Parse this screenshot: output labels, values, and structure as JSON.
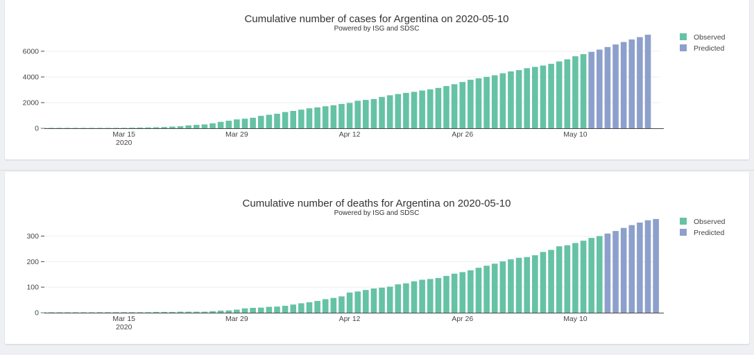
{
  "colors": {
    "observed": "#66c2a5",
    "predicted": "#8da0cb",
    "background": "#eef0f3"
  },
  "chart_data": [
    {
      "type": "bar",
      "title": "Cumulative number of cases for Argentina on 2020-05-10",
      "subtitle": "Powered by ISG and SDSC",
      "xlabel": "",
      "ylabel": "",
      "ylim": [
        0,
        7400
      ],
      "yticks": [
        0,
        2000,
        4000,
        6000
      ],
      "ytick_labels": [
        "0",
        "2000",
        "4000",
        "6000"
      ],
      "xticks": [
        {
          "day": 10,
          "label": "Mar 15",
          "sub": "2020"
        },
        {
          "day": 24,
          "label": "Mar 29",
          "sub": ""
        },
        {
          "day": 38,
          "label": "Apr 12",
          "sub": ""
        },
        {
          "day": 52,
          "label": "Apr 26",
          "sub": ""
        },
        {
          "day": 66,
          "label": "May 10",
          "sub": ""
        }
      ],
      "legend": {
        "position": "top-right",
        "entries": [
          "Observed",
          "Predicted"
        ]
      },
      "series": [
        {
          "name": "Observed",
          "start_day": 0,
          "values": [
            1,
            2,
            2,
            8,
            12,
            12,
            17,
            19,
            19,
            31,
            34,
            45,
            56,
            65,
            79,
            97,
            128,
            158,
            225,
            266,
            301,
            387,
            502,
            589,
            690,
            745,
            820,
            966,
            1054,
            1133,
            1265,
            1353,
            1451,
            1554,
            1628,
            1715,
            1795,
            1894,
            1975,
            2142,
            2208,
            2277,
            2443,
            2571,
            2669,
            2758,
            2839,
            2941,
            3031,
            3144,
            3288,
            3435,
            3607,
            3780,
            3892,
            4003,
            4127,
            4285,
            4428,
            4532,
            4681,
            4783,
            4887,
            5020,
            5208,
            5371,
            5611,
            5776
          ]
        },
        {
          "name": "Predicted",
          "start_day": 68,
          "values": [
            5950,
            6130,
            6330,
            6530,
            6720,
            6920,
            7100,
            7290
          ]
        }
      ]
    },
    {
      "type": "bar",
      "title": "Cumulative number of deaths for Argentina on 2020-05-10",
      "subtitle": "Powered by ISG and SDSC",
      "xlabel": "",
      "ylabel": "",
      "ylim": [
        0,
        372
      ],
      "yticks": [
        0,
        100,
        200,
        300
      ],
      "ytick_labels": [
        "0",
        "100",
        "200",
        "300"
      ],
      "xticks": [
        {
          "day": 10,
          "label": "Mar 15",
          "sub": "2020"
        },
        {
          "day": 24,
          "label": "Mar 29",
          "sub": ""
        },
        {
          "day": 38,
          "label": "Apr 12",
          "sub": ""
        },
        {
          "day": 52,
          "label": "Apr 26",
          "sub": ""
        },
        {
          "day": 66,
          "label": "May 10",
          "sub": ""
        }
      ],
      "legend": {
        "position": "top-right",
        "entries": [
          "Observed",
          "Predicted"
        ]
      },
      "series": [
        {
          "name": "Observed",
          "start_day": 0,
          "values": [
            1,
            1,
            1,
            1,
            1,
            1,
            1,
            2,
            2,
            2,
            2,
            2,
            2,
            2,
            3,
            3,
            3,
            4,
            4,
            4,
            4,
            6,
            8,
            9,
            12,
            17,
            19,
            20,
            23,
            24,
            27,
            32,
            37,
            41,
            46,
            53,
            58,
            64,
            79,
            83,
            89,
            95,
            98,
            102,
            111,
            115,
            123,
            129,
            132,
            136,
            144,
            153,
            159,
            166,
            176,
            184,
            192,
            201,
            209,
            215,
            218,
            225,
            238,
            246,
            260,
            264,
            273,
            282,
            293,
            300
          ]
        },
        {
          "name": "Predicted",
          "start_day": 70,
          "values": [
            310,
            320,
            332,
            343,
            353,
            362,
            367
          ]
        }
      ]
    }
  ]
}
